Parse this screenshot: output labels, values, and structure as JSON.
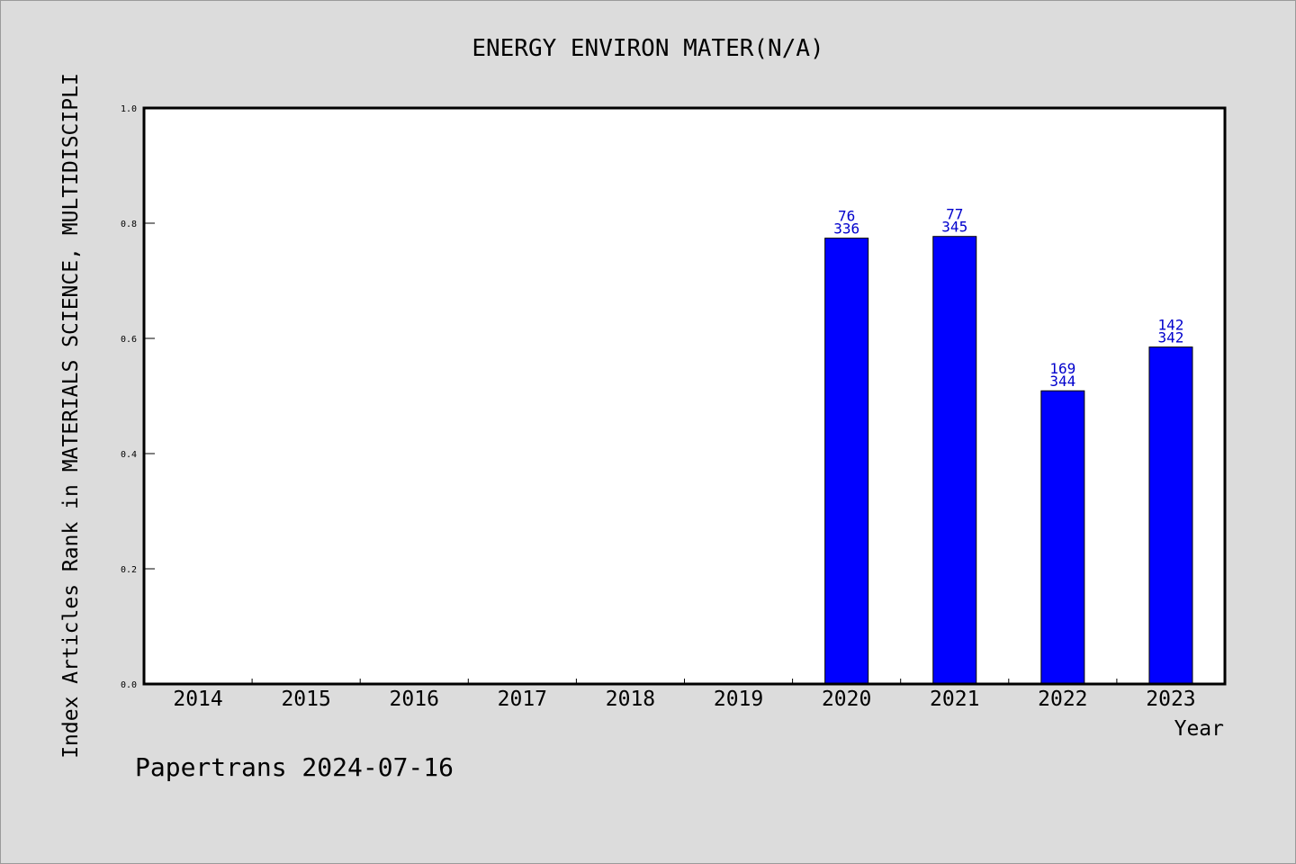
{
  "chart_data": {
    "type": "bar",
    "title": "ENERGY ENVIRON MATER(N/A)",
    "xlabel": "Year",
    "ylabel": "Index Articles Rank in MATERIALS SCIENCE, MULTIDISCIPLI",
    "categories": [
      "2014",
      "2015",
      "2016",
      "2017",
      "2018",
      "2019",
      "2020",
      "2021",
      "2022",
      "2023"
    ],
    "values": [
      null,
      null,
      null,
      null,
      null,
      null,
      0.774,
      0.777,
      0.509,
      0.585
    ],
    "data_labels": [
      null,
      null,
      null,
      null,
      null,
      null,
      {
        "rank": "76",
        "total": "336"
      },
      {
        "rank": "77",
        "total": "345"
      },
      {
        "rank": "169",
        "total": "344"
      },
      {
        "rank": "142",
        "total": "342"
      }
    ],
    "ylim": [
      0.0,
      1.0
    ],
    "yticks": [
      "0.0",
      "0.2",
      "0.4",
      "0.6",
      "0.8",
      "1.0"
    ],
    "bar_color": "#0000ff",
    "label_color": "#0000cc",
    "background_color": "#dcdcdc",
    "plot_background_color": "#ffffff",
    "grid": false,
    "legend": "none"
  },
  "footer": {
    "text": "Papertrans 2024-07-16"
  }
}
